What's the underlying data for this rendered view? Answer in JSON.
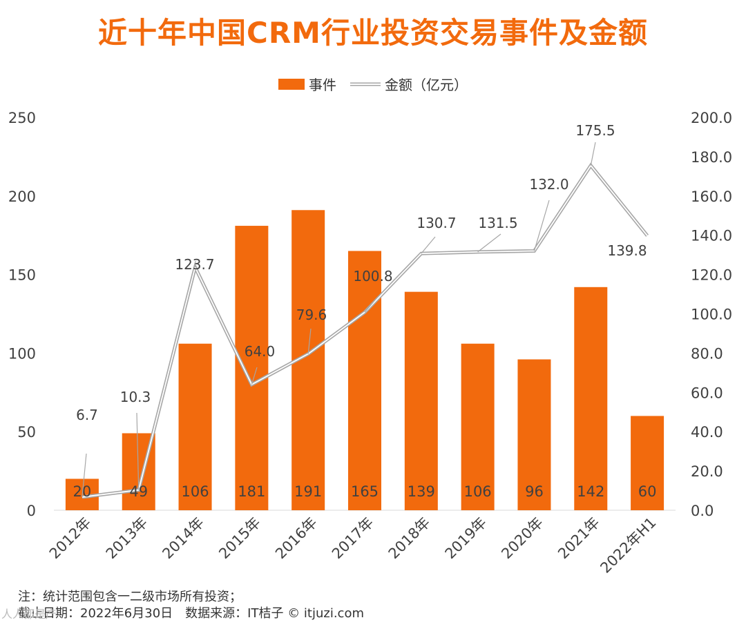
{
  "title": "近十年中国CRM行业投资交易事件及金额",
  "legend": {
    "bar_label": "事件",
    "line_label": "金额（亿元）"
  },
  "notes": {
    "line1": "注：统计范围包含一二级市场所有投资；",
    "line2": "截止日期：2022年6月30日　数据来源：IT桔子 © itjuzi.com"
  },
  "watermark_text": "人人都是产",
  "colors": {
    "bar": "#f26a0d",
    "line": "#a6a6a6",
    "axis_text": "#404040",
    "label_text": "#404040"
  },
  "chart_data": {
    "type": "bar",
    "categories": [
      "2012年",
      "2013年",
      "2014年",
      "2015年",
      "2016年",
      "2017年",
      "2018年",
      "2019年",
      "2020年",
      "2021年",
      "2022年H1"
    ],
    "series": [
      {
        "name": "事件",
        "type": "bar",
        "axis": "left",
        "values": [
          20,
          49,
          106,
          181,
          191,
          165,
          139,
          106,
          96,
          142,
          60
        ]
      },
      {
        "name": "金额（亿元）",
        "type": "line",
        "axis": "right",
        "values": [
          6.7,
          10.3,
          123.7,
          64.0,
          79.6,
          100.8,
          130.7,
          131.5,
          132.0,
          175.5,
          139.8
        ]
      }
    ],
    "y_left": {
      "min": 0,
      "max": 250,
      "ticks": [
        "0",
        "50",
        "100",
        "150",
        "200",
        "250"
      ]
    },
    "y_right": {
      "min": 0,
      "max": 200,
      "ticks": [
        "0.0",
        "20.0",
        "40.0",
        "60.0",
        "80.0",
        "100.0",
        "120.0",
        "140.0",
        "160.0",
        "180.0",
        "200.0"
      ]
    },
    "bar_labels": [
      "20",
      "49",
      "106",
      "181",
      "191",
      "165",
      "139",
      "106",
      "96",
      "142",
      "60"
    ],
    "line_labels": [
      "6.7",
      "10.3",
      "123.7",
      "64.0",
      "79.6",
      "100.8",
      "130.7",
      "131.5",
      "132.0",
      "175.5",
      "139.8"
    ],
    "grid": false,
    "legend_position": "top"
  }
}
